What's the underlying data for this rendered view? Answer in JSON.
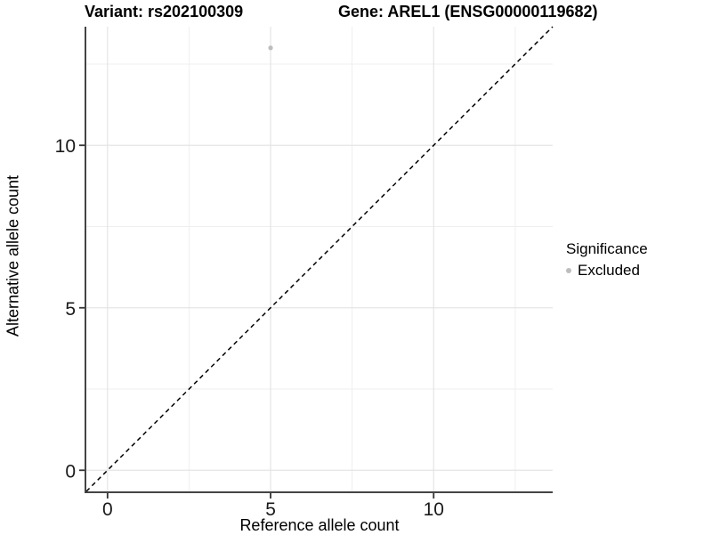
{
  "figure": {
    "title_left": "Variant: rs202100309",
    "title_right": "Gene: AREL1 (ENSG00000119682)"
  },
  "chart_data": {
    "type": "scatter",
    "title_left": "Variant: rs202100309",
    "title_right": "Gene: AREL1 (ENSG00000119682)",
    "xlabel": "Reference allele count",
    "ylabel": "Alternative allele count",
    "xlim": [
      -0.65,
      13.65
    ],
    "ylim": [
      -0.65,
      13.65
    ],
    "x_ticks": [
      0,
      5,
      10
    ],
    "y_ticks": [
      0,
      5,
      10
    ],
    "x_minor_ticks": [
      2.5,
      7.5,
      12.5
    ],
    "y_minor_ticks": [
      2.5,
      7.5,
      12.5
    ],
    "grid": "major+minor, light gray on white",
    "identity_line": {
      "style": "dashed",
      "color": "#000000",
      "x1": -0.65,
      "y1": -0.65,
      "x2": 13.65,
      "y2": 13.65
    },
    "series": [
      {
        "name": "Excluded",
        "color": "#bdbdbd",
        "points": [
          {
            "x": 5,
            "y": 13
          }
        ]
      }
    ],
    "legend": {
      "title": "Significance",
      "position": "right",
      "items": [
        {
          "label": "Excluded",
          "color": "#bdbdbd",
          "marker": "circle"
        }
      ]
    },
    "colors": {
      "background": "#ffffff",
      "grid_major": "#e4e4e4",
      "grid_minor": "#efefef",
      "axis_line": "#444444",
      "tick_mark": "#333333",
      "tick_text": "#1a1a1a"
    }
  }
}
